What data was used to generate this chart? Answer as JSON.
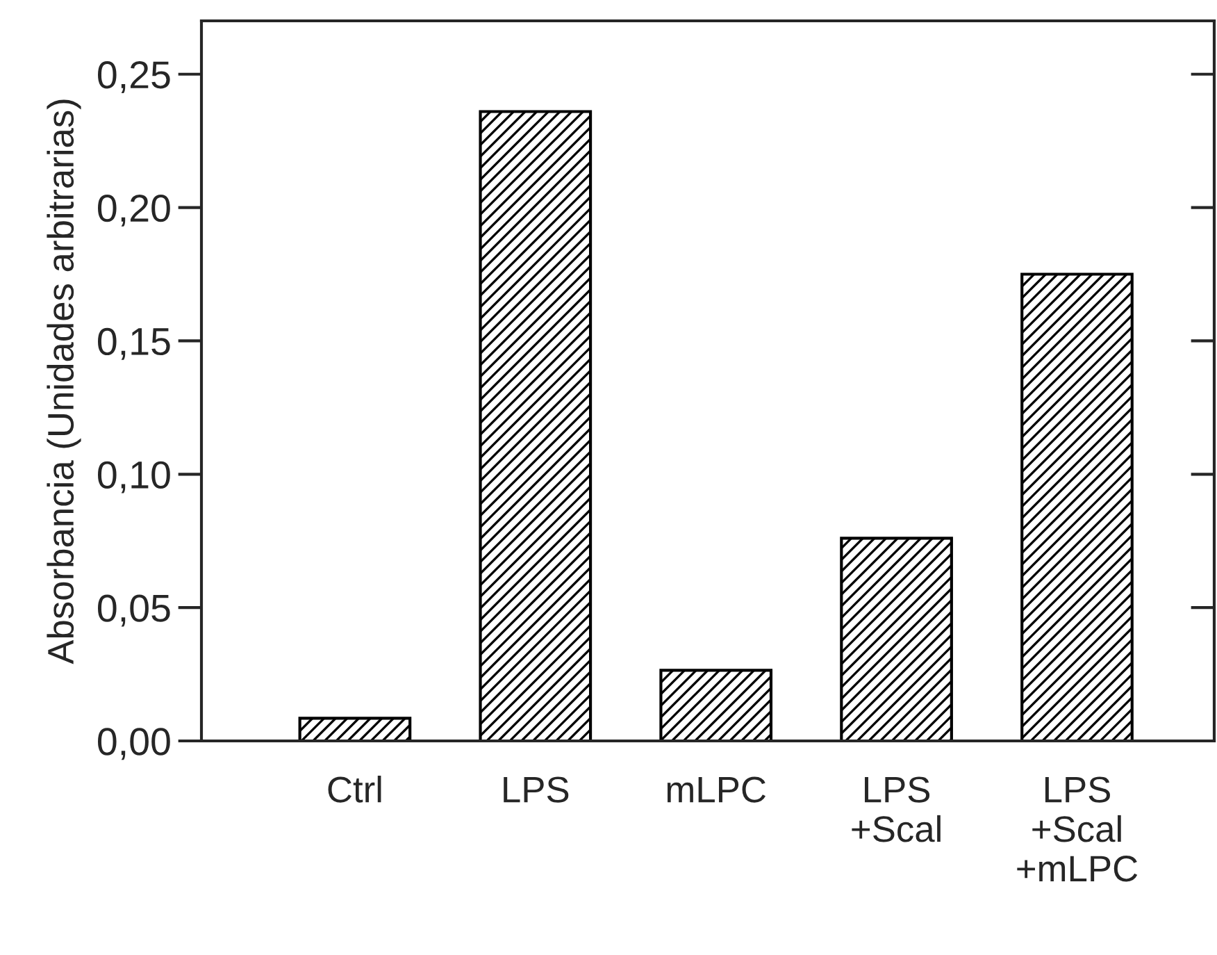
{
  "chart_data": {
    "type": "bar",
    "ylabel": "Absorbancia (Unidades arbitrarias)",
    "categories": [
      "Ctrl",
      "LPS",
      "mLPC",
      "LPS\n+Scal",
      "LPS\n+Scal\n+mLPC"
    ],
    "values": [
      0.0085,
      0.236,
      0.0265,
      0.076,
      0.175
    ],
    "color": "#000000",
    "ylim": [
      0,
      0.27
    ],
    "yticks": [
      {
        "value": 0,
        "label": "0,00"
      },
      {
        "value": 0.05,
        "label": "0,05"
      },
      {
        "value": 0.1,
        "label": "0,10"
      },
      {
        "value": 0.15,
        "label": "0,15"
      },
      {
        "value": 0.2,
        "label": "0,20"
      },
      {
        "value": 0.25,
        "label": "0,25"
      }
    ],
    "grid": false
  }
}
